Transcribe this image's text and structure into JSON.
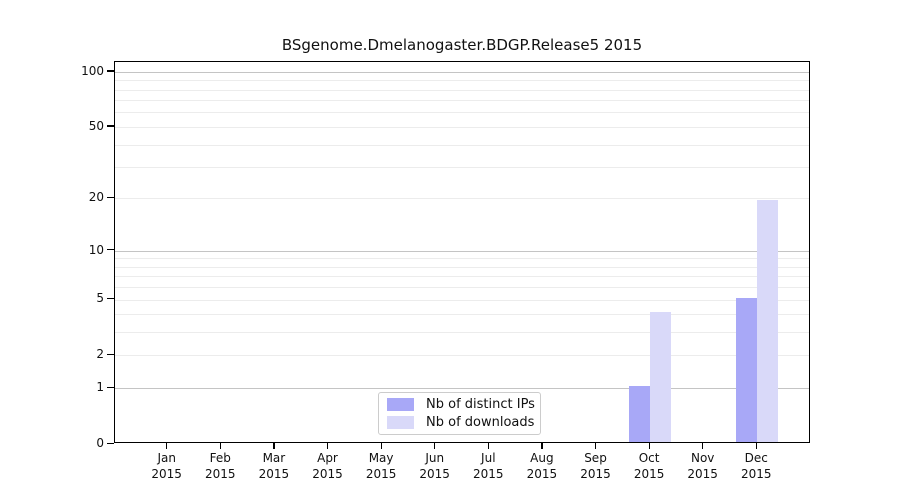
{
  "chart_data": {
    "type": "bar",
    "title": "BSgenome.Dmelanogaster.BDGP.Release5 2015",
    "categories": [
      "Jan 2015",
      "Feb 2015",
      "Mar 2015",
      "Apr 2015",
      "May 2015",
      "Jun 2015",
      "Jul 2015",
      "Aug 2015",
      "Sep 2015",
      "Oct 2015",
      "Nov 2015",
      "Dec 2015"
    ],
    "series": [
      {
        "name": "Nb of distinct IPs",
        "color": "#a8a8f7",
        "values": [
          0,
          0,
          0,
          0,
          0,
          0,
          0,
          0,
          0,
          1,
          0,
          5
        ]
      },
      {
        "name": "Nb of downloads",
        "color": "#d9d9f9",
        "values": [
          0,
          0,
          0,
          0,
          0,
          0,
          0,
          0,
          0,
          4,
          0,
          19
        ]
      }
    ],
    "xlabel": "",
    "ylabel": "",
    "yscale": "log1p",
    "ylim": [
      0,
      113
    ],
    "yticks": [
      0,
      1,
      2,
      5,
      10,
      20,
      50,
      100
    ],
    "ytick_labels": [
      "0",
      "1",
      "2",
      "5",
      "10",
      "20",
      "50",
      "100"
    ],
    "major_gridlines": [
      1,
      10,
      100
    ],
    "grid": "horizontal",
    "legend_position": "lower center",
    "colors": {
      "major_grid": "#c4c4c4",
      "minor_grid": "#ececec",
      "axis": "#000000",
      "legend_border": "#cccccc",
      "background": "#ffffff"
    }
  }
}
